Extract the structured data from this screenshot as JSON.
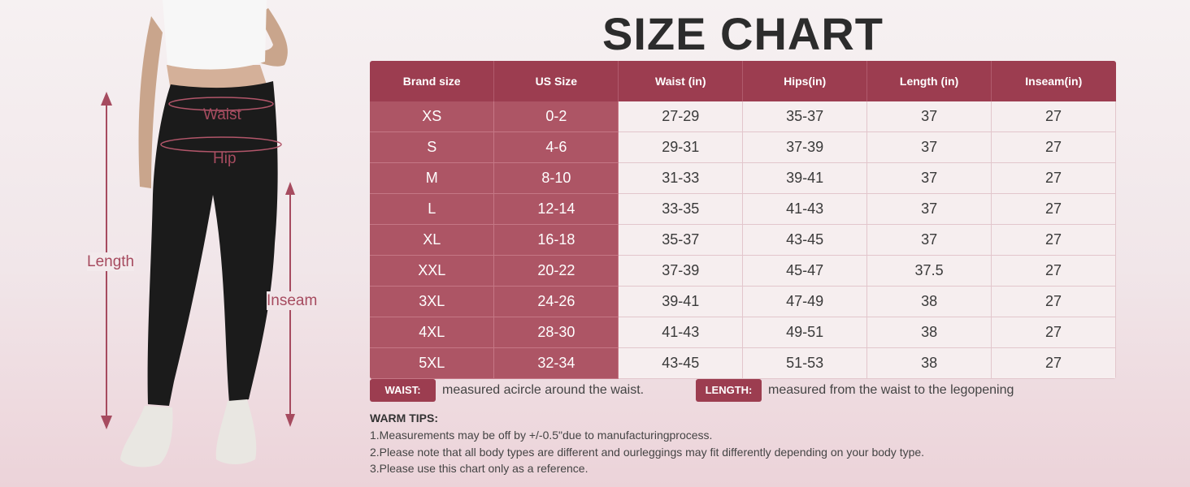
{
  "title": "SIZE CHART",
  "figure": {
    "labels": {
      "waist": "Waist",
      "hip": "Hip",
      "length": "Length",
      "inseam": "Inseam"
    }
  },
  "table": {
    "headers": [
      "Brand size",
      "US Size",
      "Waist (in)",
      "Hips(in)",
      "Length (in)",
      "Inseam(in)"
    ],
    "rows": [
      [
        "XS",
        "0-2",
        "27-29",
        "35-37",
        "37",
        "27"
      ],
      [
        "S",
        "4-6",
        "29-31",
        "37-39",
        "37",
        "27"
      ],
      [
        "M",
        "8-10",
        "31-33",
        "39-41",
        "37",
        "27"
      ],
      [
        "L",
        "12-14",
        "33-35",
        "41-43",
        "37",
        "27"
      ],
      [
        "XL",
        "16-18",
        "35-37",
        "43-45",
        "37",
        "27"
      ],
      [
        "XXL",
        "20-22",
        "37-39",
        "45-47",
        "37.5",
        "27"
      ],
      [
        "3XL",
        "24-26",
        "39-41",
        "47-49",
        "38",
        "27"
      ],
      [
        "4XL",
        "28-30",
        "41-43",
        "49-51",
        "38",
        "27"
      ],
      [
        "5XL",
        "32-34",
        "43-45",
        "51-53",
        "38",
        "27"
      ]
    ]
  },
  "definitions": {
    "waist": {
      "tag": "WAIST:",
      "text": "measured acircle around the waist."
    },
    "length": {
      "tag": "LENGTH:",
      "text": "measured from the waist to the legopening"
    }
  },
  "tips": {
    "heading": "WARM TIPS:",
    "items": [
      "1.Measurements may be off by +/-0.5\"due to manufacturingprocess.",
      "2.Please note that all body types are different and ourleggings may fit differently depending on your body type.",
      "3.Please use this chart only as a reference."
    ]
  },
  "colors": {
    "accent": "#9c3d50",
    "accent_light": "#ad5565",
    "cell_bg": "#f6eeef",
    "label": "#a64b5f"
  }
}
